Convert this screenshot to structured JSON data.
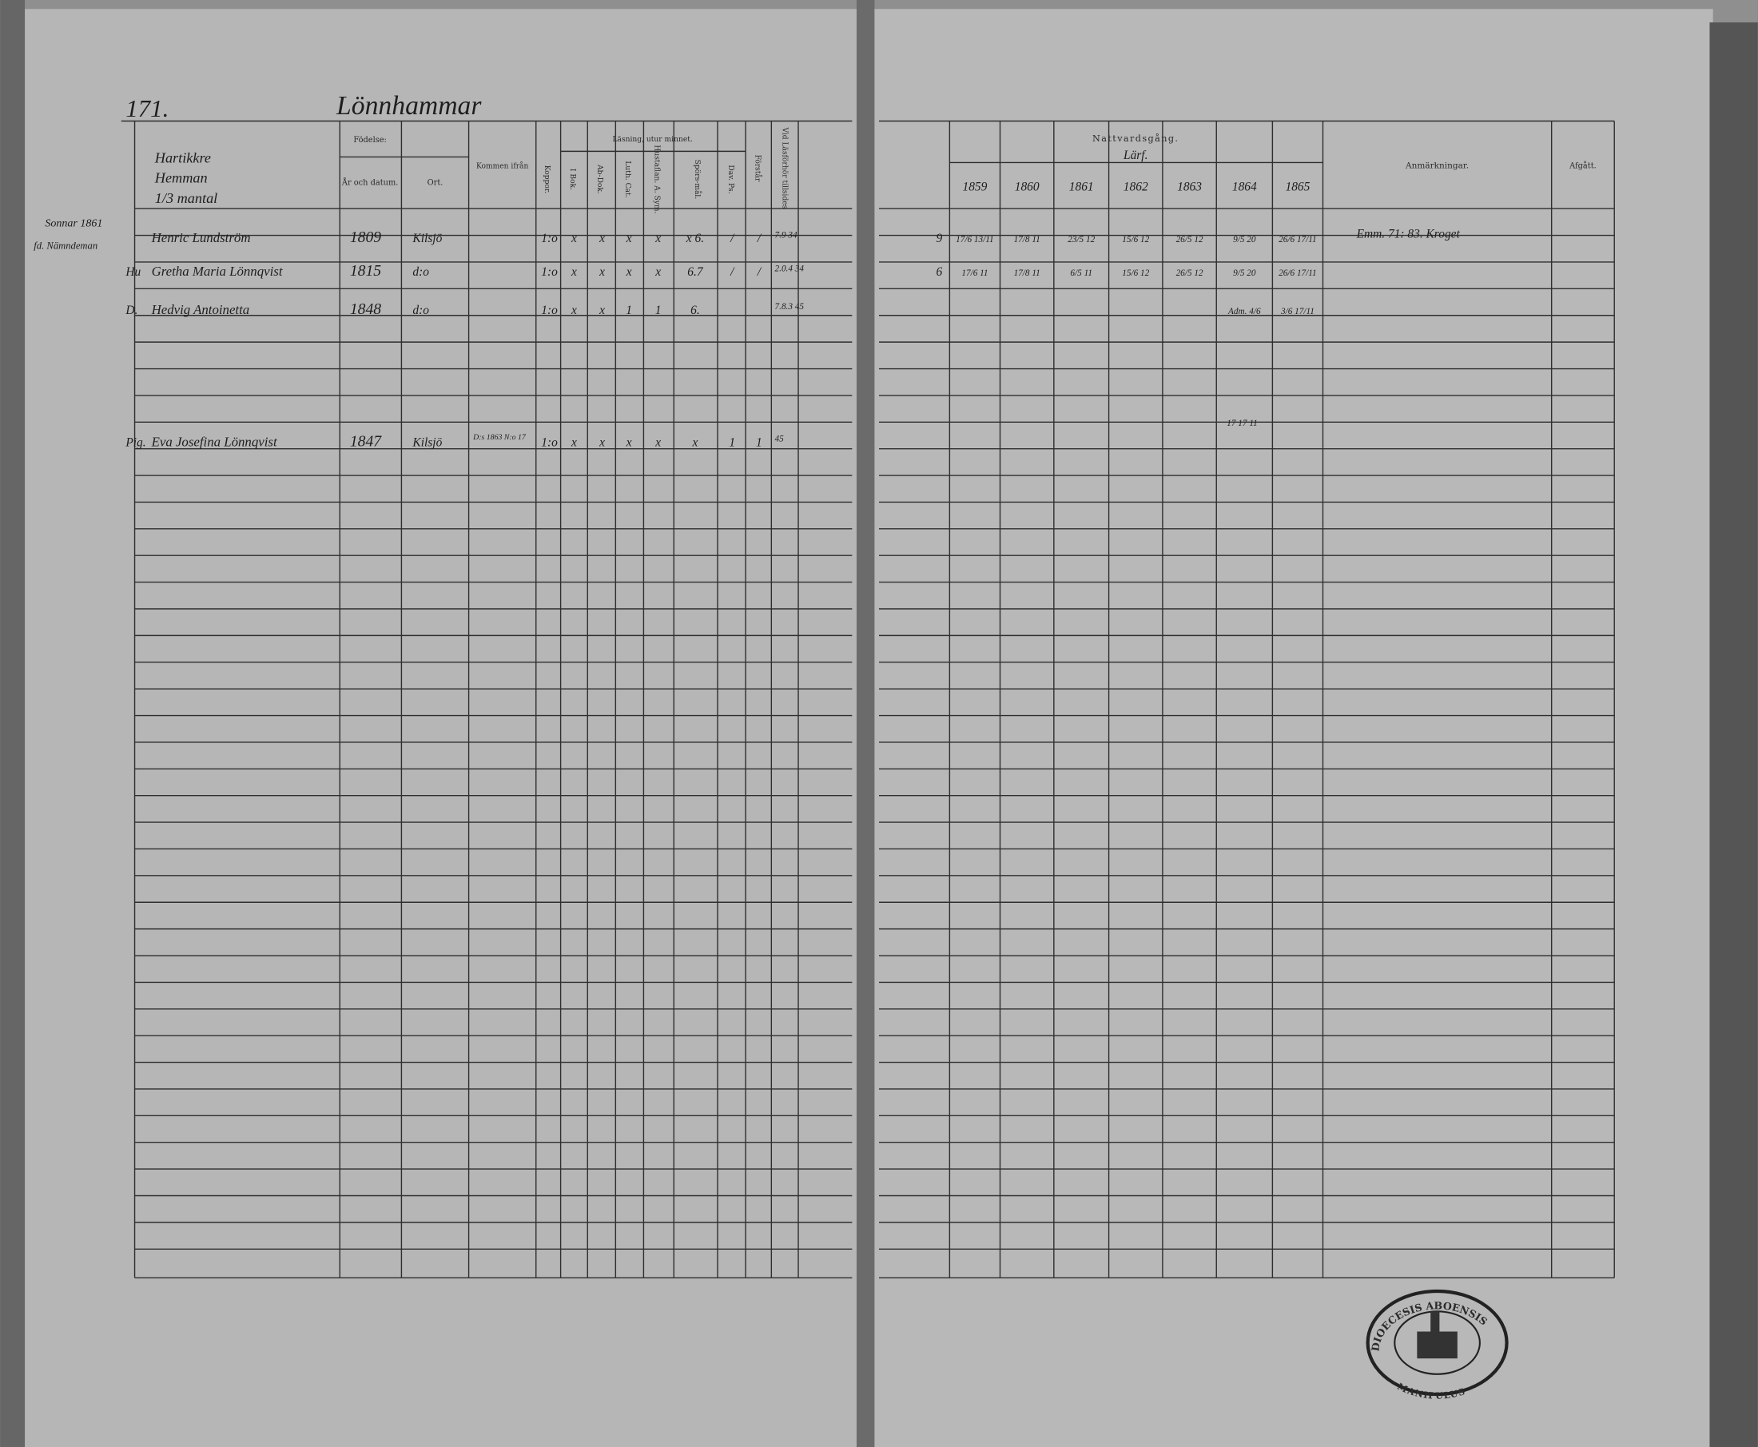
{
  "left_page": {
    "page_number": "171.",
    "village": "Lönnhammar",
    "header": {
      "household": [
        "Hartikkre",
        "Hemman",
        "1/3 mantal"
      ],
      "birth": "Födelse:",
      "birth_date": "År och datum.",
      "birth_place": "Ort.",
      "came_from": "Kommen ifrån",
      "smallpox": "Koppor.",
      "reading": "Läsning, utur minnet.",
      "reading_book": "I Bok.",
      "ab_dok": "Ab-Dok.",
      "luth_cat": "Luth. Cat.",
      "hustaflan": "Hustaflan. A. Sym.",
      "questions": "Spörs-mål.",
      "dav_ps": "Dav. Ps.",
      "understands": "Förstår",
      "examined": "Vid Läsförhör tillsides"
    },
    "margin_notes": [
      "Sonnar 1861",
      "fd. Nämndeman"
    ],
    "rows": [
      {
        "prefix": "",
        "name": "Henric Lundström",
        "birth_date": "1809",
        "birth_place": "Kilsjö",
        "marks": [
          "1:o",
          "x",
          "x",
          "x",
          "x",
          "x 6.",
          "/",
          "/"
        ],
        "examined": "7.9 34"
      },
      {
        "prefix": "Hu",
        "name": "Gretha Maria Lönnqvist",
        "birth_date": "1815",
        "birth_place": "d:o",
        "marks": [
          "1:o",
          "x",
          "x",
          "x",
          "x",
          "6.7",
          "/",
          "/"
        ],
        "examined": "2.0.4 34"
      },
      {
        "prefix": "D.",
        "name": "Hedvig Antoinetta",
        "birth_date": "1848",
        "birth_place": "d:o",
        "marks": [
          "1:o",
          "x",
          "x",
          "1",
          "1",
          "6."
        ],
        "examined": "7.8.3 45"
      },
      {
        "prefix": "Pig.",
        "name": "Eva Josefina Lönnqvist",
        "birth_date": "1847",
        "birth_place": "Kilsjö",
        "came_from": "D:s 1863 N:o 17",
        "marks": [
          "1:o",
          "x",
          "x",
          "x",
          "x",
          "x",
          "1",
          "1"
        ],
        "examined": "45"
      }
    ]
  },
  "right_page": {
    "communion": "Nattvardsgång.",
    "communion_sub": "Lärf.",
    "years": [
      "1859",
      "1860",
      "1861",
      "1862",
      "1863",
      "1864",
      "1865"
    ],
    "remarks": "Anmärkningar.",
    "departed": "Afgått.",
    "rows": [
      {
        "count": "9",
        "dates": [
          "17/6 13/11",
          "17/8 11",
          "23/5 12",
          "15/6 12",
          "26/5 12",
          "9/5 20",
          "26/6 17/11"
        ],
        "remark": "Emm. 71: 83. Kroget"
      },
      {
        "count": "6",
        "dates": [
          "17/6 11",
          "17/8 11",
          "6/5 11",
          "15/6 12",
          "26/5 12",
          "9/5 20",
          "26/6 17/11"
        ]
      },
      {
        "dates": [
          "",
          "",
          "",
          "",
          "",
          "Adm. 4/6",
          "3/6 17/11"
        ]
      }
    ],
    "late_entry": "17 17 11"
  },
  "stamp": {
    "text": "DIOECESIS ABOENSIS",
    "sub": "MANIPULUS"
  }
}
